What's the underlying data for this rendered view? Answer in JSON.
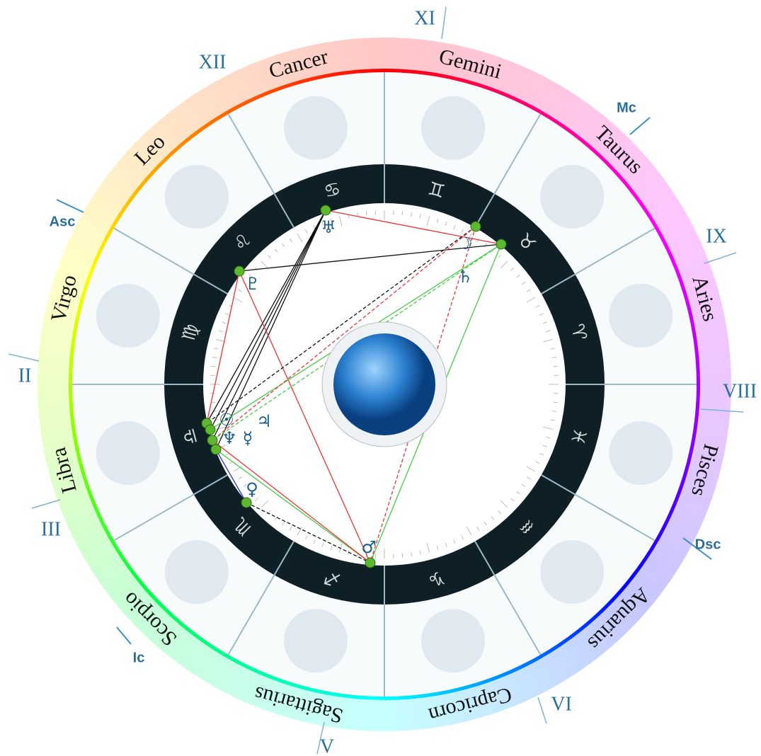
{
  "signs": [
    {
      "name": "Aries",
      "glyph": "♈"
    },
    {
      "name": "Taurus",
      "glyph": "♉"
    },
    {
      "name": "Gemini",
      "glyph": "♊"
    },
    {
      "name": "Cancer",
      "glyph": "♋"
    },
    {
      "name": "Leo",
      "glyph": "♌"
    },
    {
      "name": "Virgo",
      "glyph": "♍"
    },
    {
      "name": "Libra",
      "glyph": "♎"
    },
    {
      "name": "Scorpio",
      "glyph": "♏"
    },
    {
      "name": "Sagittarius",
      "glyph": "♐"
    },
    {
      "name": "Capricorn",
      "glyph": "♑"
    },
    {
      "name": "Aquarius",
      "glyph": "♒"
    },
    {
      "name": "Pisces",
      "glyph": "♓"
    }
  ],
  "houses": [
    "II",
    "III",
    "V",
    "VI",
    "VIII",
    "IX",
    "XI",
    "XII"
  ],
  "angles": [
    "Asc",
    "Mc",
    "Dsc",
    "Ic"
  ],
  "planets": [
    "♅",
    "☽",
    "♄",
    "♇",
    "☉",
    "♃",
    "♆",
    "☿",
    "♀",
    "♂"
  ]
}
